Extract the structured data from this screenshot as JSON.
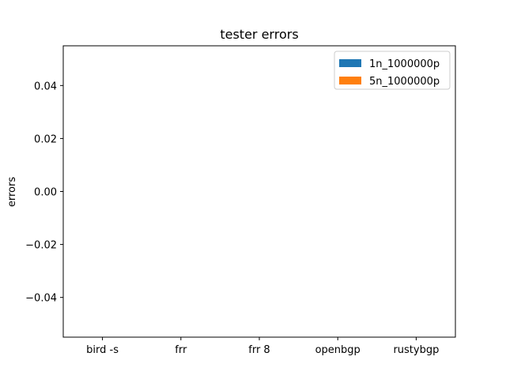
{
  "chart_data": {
    "type": "bar",
    "title": "tester errors",
    "xlabel": "",
    "ylabel": "errors",
    "categories": [
      "bird -s",
      "frr",
      "frr 8",
      "openbgp",
      "rustybgp"
    ],
    "series": [
      {
        "name": "1n_1000000p",
        "values": [
          0,
          0,
          0,
          0,
          0
        ],
        "color": "#1f77b4"
      },
      {
        "name": "5n_1000000p",
        "values": [
          0,
          0,
          0,
          0,
          0
        ],
        "color": "#ff7f0e"
      }
    ],
    "ylim": [
      -0.055,
      0.055
    ],
    "yticks": [
      -0.04,
      -0.02,
      0.0,
      0.02,
      0.04
    ],
    "ytick_labels": [
      "−0.04",
      "−0.02",
      "0.00",
      "0.02",
      "0.04"
    ],
    "grid": false,
    "legend_position": "upper-right"
  }
}
